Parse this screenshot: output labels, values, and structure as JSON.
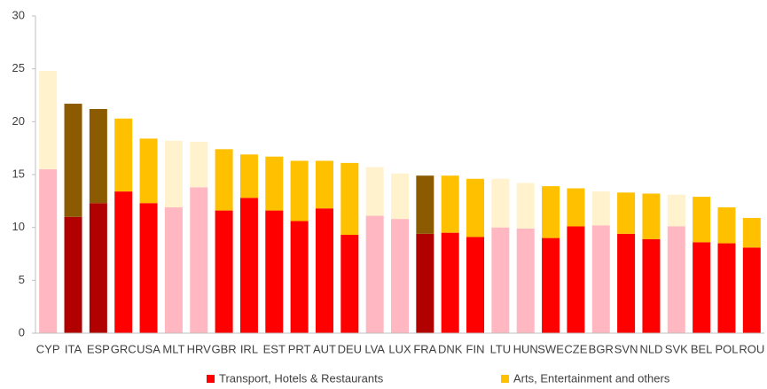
{
  "chart_data": {
    "type": "stacked_bar",
    "categories": [
      "CYP",
      "ITA",
      "ESP",
      "GRC",
      "USA",
      "MLT",
      "HRV",
      "GBR",
      "IRL",
      "EST",
      "PRT",
      "AUT",
      "DEU",
      "LVA",
      "LUX",
      "FRA",
      "DNK",
      "FIN",
      "LTU",
      "HUN",
      "SWE",
      "CZE",
      "BGR",
      "SVN",
      "NLD",
      "SVK",
      "BEL",
      "POL",
      "ROU"
    ],
    "series": [
      {
        "name": "Transport, Hotels & Restaurants",
        "color": "#ff0000",
        "colors": [
          "#ffb7c1",
          "#b00000",
          "#b00000",
          "#ff0000",
          "#ff0000",
          "#ffb7c1",
          "#ffb7c1",
          "#ff0000",
          "#ff0000",
          "#ff0000",
          "#ff0000",
          "#ff0000",
          "#ff0000",
          "#ffb7c1",
          "#ffb7c1",
          "#b00000",
          "#ff0000",
          "#ff0000",
          "#ffb7c1",
          "#ffb7c1",
          "#ff0000",
          "#ff0000",
          "#ffb7c1",
          "#ff0000",
          "#ff0000",
          "#ffb7c1",
          "#ff0000",
          "#ff0000",
          "#ff0000"
        ],
        "values": [
          15.5,
          11.0,
          12.3,
          13.4,
          12.3,
          11.9,
          13.8,
          11.6,
          12.8,
          11.6,
          10.6,
          11.8,
          9.3,
          11.1,
          10.8,
          9.4,
          9.5,
          9.1,
          10.0,
          9.9,
          9.0,
          10.1,
          10.2,
          9.4,
          8.9,
          10.1,
          8.6,
          8.5,
          8.1
        ]
      },
      {
        "name": "Arts, Entertainment and others",
        "color": "#ffc000",
        "colors": [
          "#fff2cc",
          "#8c5a00",
          "#8c5a00",
          "#ffc000",
          "#ffc000",
          "#fff2cc",
          "#fff2cc",
          "#ffc000",
          "#ffc000",
          "#ffc000",
          "#ffc000",
          "#ffc000",
          "#ffc000",
          "#fff2cc",
          "#fff2cc",
          "#8c5a00",
          "#ffc000",
          "#ffc000",
          "#fff2cc",
          "#fff2cc",
          "#ffc000",
          "#ffc000",
          "#fff2cc",
          "#ffc000",
          "#ffc000",
          "#fff2cc",
          "#ffc000",
          "#ffc000",
          "#ffc000"
        ],
        "values": [
          9.3,
          10.7,
          8.9,
          6.9,
          6.1,
          6.3,
          4.3,
          5.8,
          4.1,
          5.1,
          5.7,
          4.5,
          6.8,
          4.6,
          4.3,
          5.5,
          5.4,
          5.5,
          4.6,
          4.3,
          4.9,
          3.6,
          3.2,
          3.9,
          4.3,
          3.0,
          4.3,
          3.4,
          2.8
        ]
      }
    ],
    "ylim": [
      0,
      30
    ],
    "yticks": [
      0,
      5,
      10,
      15,
      20,
      25,
      30
    ],
    "grid": false,
    "legend": "bottom"
  }
}
